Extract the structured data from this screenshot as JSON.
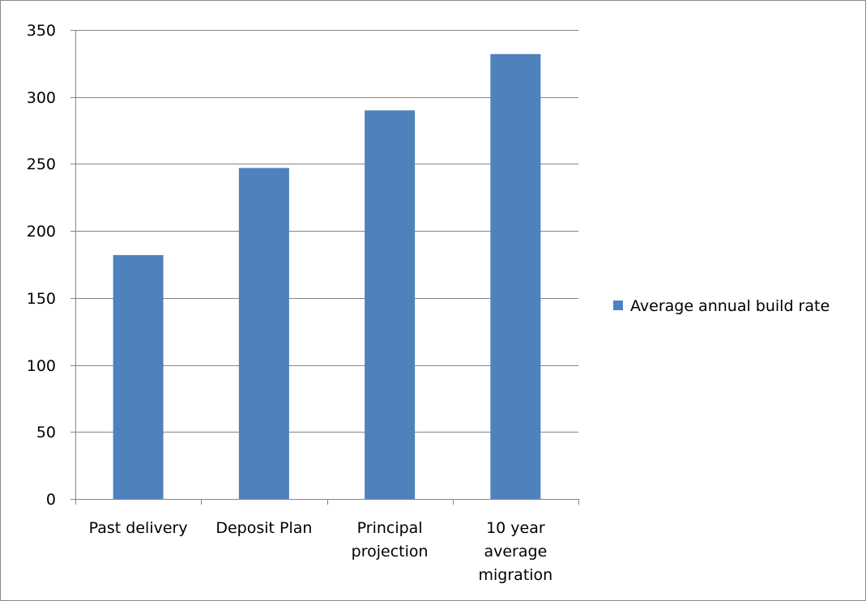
{
  "chart_data": {
    "type": "bar",
    "categories": [
      [
        "Past delivery"
      ],
      [
        "Deposit Plan"
      ],
      [
        "Principal",
        "projection"
      ],
      [
        "10 year",
        "average",
        "migration"
      ]
    ],
    "series": [
      {
        "name": "Average annual build rate",
        "values": [
          182,
          247,
          290,
          332
        ],
        "color": "#4f81bd"
      }
    ],
    "ylim": [
      0,
      350
    ],
    "yticks": [
      0,
      50,
      100,
      150,
      200,
      250,
      300,
      350
    ],
    "grid": true,
    "legend_position": "right",
    "gridline_color": "#868686",
    "axis_color": "#868686"
  }
}
